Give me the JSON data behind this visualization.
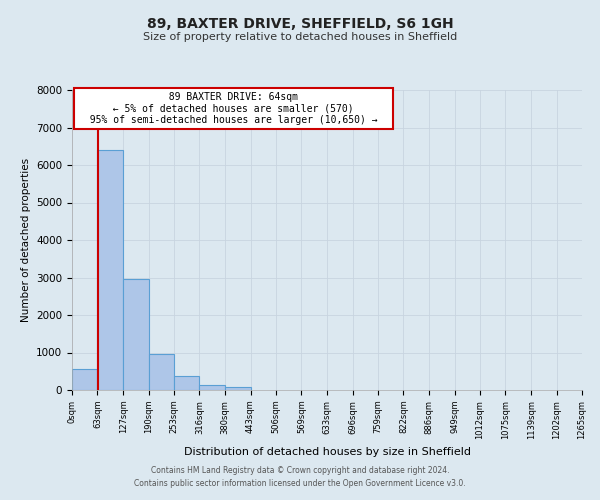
{
  "title": "89, BAXTER DRIVE, SHEFFIELD, S6 1GH",
  "subtitle": "Size of property relative to detached houses in Sheffield",
  "xlabel": "Distribution of detached houses by size in Sheffield",
  "ylabel": "Number of detached properties",
  "bin_edges": [
    0,
    63,
    127,
    190,
    253,
    316,
    380,
    443,
    506,
    569,
    633,
    696,
    759,
    822,
    886,
    949,
    1012,
    1075,
    1139,
    1202,
    1265
  ],
  "bin_labels": [
    "0sqm",
    "63sqm",
    "127sqm",
    "190sqm",
    "253sqm",
    "316sqm",
    "380sqm",
    "443sqm",
    "506sqm",
    "569sqm",
    "633sqm",
    "696sqm",
    "759sqm",
    "822sqm",
    "886sqm",
    "949sqm",
    "1012sqm",
    "1075sqm",
    "1139sqm",
    "1202sqm",
    "1265sqm"
  ],
  "bar_heights": [
    560,
    6400,
    2950,
    970,
    370,
    145,
    70,
    0,
    0,
    0,
    0,
    0,
    0,
    0,
    0,
    0,
    0,
    0,
    0,
    0
  ],
  "bar_color": "#aec6e8",
  "bar_edge_color": "#5a9fd4",
  "property_line_x": 64,
  "annotation_title": "89 BAXTER DRIVE: 64sqm",
  "annotation_line1": "← 5% of detached houses are smaller (570)",
  "annotation_line2": "95% of semi-detached houses are larger (10,650) →",
  "annotation_box_color": "#ffffff",
  "annotation_box_edge_color": "#cc0000",
  "vline_color": "#cc0000",
  "ylim": [
    0,
    8000
  ],
  "yticks": [
    0,
    1000,
    2000,
    3000,
    4000,
    5000,
    6000,
    7000,
    8000
  ],
  "grid_color": "#c8d4e0",
  "bg_color": "#dce8f0",
  "footer_line1": "Contains HM Land Registry data © Crown copyright and database right 2024.",
  "footer_line2": "Contains public sector information licensed under the Open Government Licence v3.0."
}
